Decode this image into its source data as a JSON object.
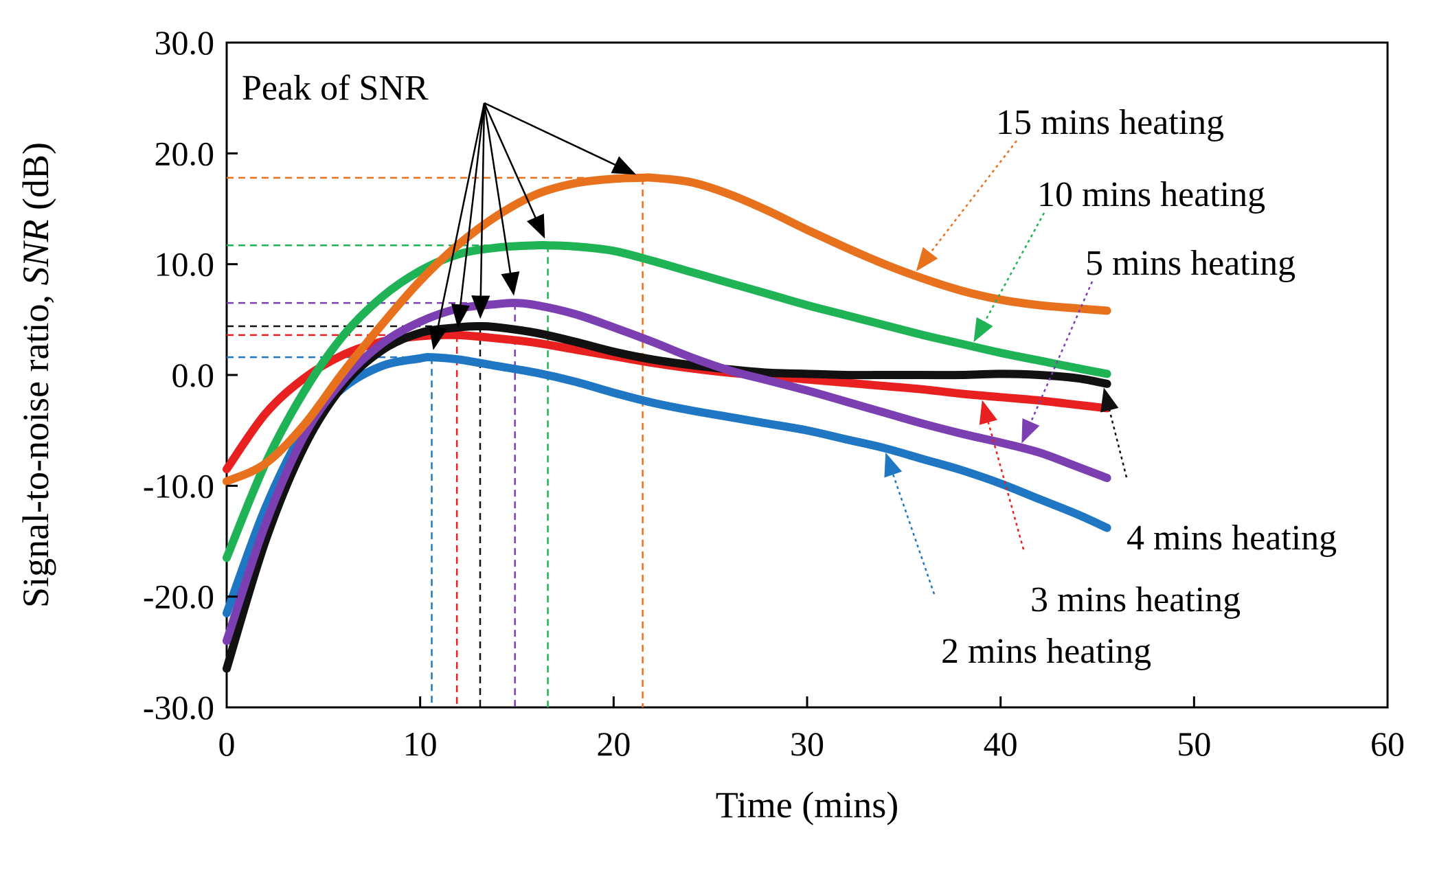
{
  "chart_data": {
    "type": "line",
    "xlabel": "Time  (mins)",
    "ylabel_prefix": "Signal-to-noise  ratio, ",
    "ylabel_italic": "SNR",
    "ylabel_suffix": " (dB)",
    "xlim": [
      0,
      60
    ],
    "ylim": [
      -30,
      30
    ],
    "x_ticks": [
      0,
      10,
      20,
      30,
      40,
      50,
      60
    ],
    "x_tick_labels": [
      "0",
      "10",
      "20",
      "30",
      "40",
      "50",
      "60"
    ],
    "y_ticks": [
      -30,
      -20,
      -10,
      0,
      10,
      20,
      30
    ],
    "y_tick_labels": [
      "-30.0",
      "-20.0",
      "-10.0",
      "0.0",
      "10.0",
      "20.0",
      "30.0"
    ],
    "grid": false,
    "annotation": "Peak of SNR",
    "series": [
      {
        "name": "2 mins  heating",
        "color": "#1f77c4",
        "peak": [
          10.6,
          1.6
        ],
        "x": [
          0,
          2,
          4,
          6,
          8,
          10,
          10.6,
          12,
          14,
          16,
          18,
          20,
          22,
          24,
          26,
          28,
          30,
          32,
          34,
          36,
          38,
          40,
          42,
          44,
          45.5
        ],
        "y": [
          -21.5,
          -12,
          -5,
          -1.2,
          0.8,
          1.5,
          1.6,
          1.4,
          0.8,
          0.2,
          -0.6,
          -1.6,
          -2.5,
          -3.2,
          -3.8,
          -4.4,
          -5,
          -5.8,
          -6.6,
          -7.6,
          -8.6,
          -9.8,
          -11.2,
          -12.6,
          -13.8
        ]
      },
      {
        "name": "3 mins  heating",
        "color": "#e8201f",
        "peak": [
          11.9,
          3.6
        ],
        "x": [
          0,
          2,
          4,
          6,
          8,
          10,
          11.9,
          14,
          16,
          18,
          20,
          22,
          24,
          26,
          28,
          30,
          32,
          34,
          36,
          38,
          40,
          42,
          44,
          45.5
        ],
        "y": [
          -8.5,
          -3.5,
          -0.3,
          1.8,
          3.0,
          3.5,
          3.6,
          3.3,
          2.9,
          2.3,
          1.7,
          1.1,
          0.6,
          0.2,
          -0.1,
          -0.4,
          -0.7,
          -1.0,
          -1.3,
          -1.7,
          -2.0,
          -2.3,
          -2.7,
          -3.0
        ]
      },
      {
        "name": "4 mins  heating",
        "color": "#111111",
        "peak": [
          13.1,
          4.4
        ],
        "x": [
          0,
          2,
          4,
          6,
          8,
          10,
          12,
          13.1,
          14,
          16,
          18,
          20,
          22,
          24,
          26,
          28,
          30,
          32,
          34,
          36,
          38,
          40,
          42,
          44,
          45.5
        ],
        "y": [
          -26.5,
          -15,
          -6.5,
          -1,
          2.2,
          3.8,
          4.3,
          4.4,
          4.3,
          3.8,
          3.0,
          2.1,
          1.4,
          0.9,
          0.5,
          0.2,
          0.1,
          0,
          0,
          0,
          0,
          0.1,
          0,
          -0.3,
          -0.8
        ]
      },
      {
        "name": "5 mins  heating",
        "color": "#7b3fb2",
        "peak": [
          14.9,
          6.5
        ],
        "x": [
          0,
          2,
          4,
          6,
          8,
          10,
          12,
          14,
          14.9,
          16,
          18,
          20,
          22,
          24,
          26,
          28,
          30,
          32,
          34,
          36,
          38,
          40,
          42,
          44,
          45.5
        ],
        "y": [
          -24,
          -13.5,
          -5.5,
          -0.5,
          2.8,
          4.8,
          6.0,
          6.4,
          6.5,
          6.3,
          5.5,
          4.3,
          3.0,
          1.6,
          0.4,
          -0.5,
          -1.4,
          -2.4,
          -3.4,
          -4.4,
          -5.3,
          -6.1,
          -7.0,
          -8.3,
          -9.3
        ]
      },
      {
        "name": "10 mins  heating",
        "color": "#1fb356",
        "peak": [
          16.6,
          11.7
        ],
        "x": [
          0,
          2,
          4,
          6,
          8,
          10,
          12,
          14,
          16,
          16.6,
          18,
          20,
          22,
          24,
          26,
          28,
          30,
          32,
          34,
          36,
          38,
          40,
          42,
          44,
          45.5
        ],
        "y": [
          -16.5,
          -8,
          -1.5,
          3.5,
          7,
          9.4,
          10.9,
          11.5,
          11.7,
          11.7,
          11.6,
          11.2,
          10.3,
          9.3,
          8.3,
          7.3,
          6.3,
          5.4,
          4.5,
          3.6,
          2.8,
          2.0,
          1.3,
          0.6,
          0.1
        ]
      },
      {
        "name": "15 mins  heating",
        "color": "#e8711e",
        "peak": [
          21.5,
          17.8
        ],
        "x": [
          0,
          2,
          4,
          6,
          8,
          10,
          12,
          14,
          16,
          18,
          20,
          21.5,
          22,
          24,
          26,
          28,
          30,
          32,
          34,
          36,
          38,
          40,
          42,
          44,
          45.5
        ],
        "y": [
          -9.6,
          -8,
          -4.5,
          0.2,
          4.5,
          8.5,
          11.8,
          14.4,
          16.3,
          17.3,
          17.7,
          17.8,
          17.8,
          17.4,
          16.3,
          14.8,
          13.1,
          11.5,
          10,
          8.7,
          7.6,
          6.8,
          6.3,
          6.0,
          5.8
        ]
      }
    ]
  }
}
